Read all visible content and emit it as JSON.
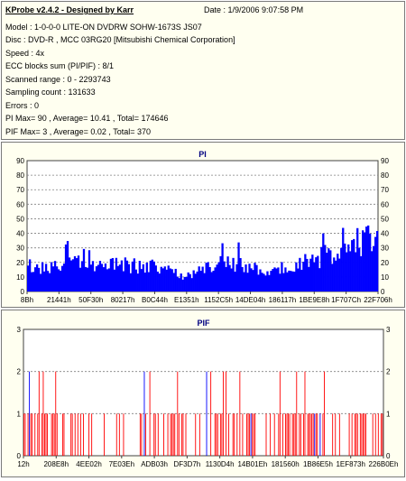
{
  "info": {
    "title": "KProbe v2.4.2 - Designed by Karr",
    "date": "Date : 1/9/2006 9:07:58 PM",
    "lines": [
      "Model : 1-0-0-0 LITE-ON DVDRW SOHW-1673S JS07",
      "Disc : DVD-R , MCC 03RG20  [Mitsubishi Chemical Corporation]",
      "Speed : 4x",
      "ECC blocks sum (PI/PIF) : 8/1",
      "Scanned range : 0 - 2293743",
      "Sampling count : 131633",
      "Errors : 0",
      "PI Max= 90 , Average= 10.41 , Total= 174646",
      "PIF Max= 3 , Average= 0.02 , Total= 370"
    ]
  },
  "colors": {
    "background": "#fffff0",
    "plot_background": "#ffffff",
    "pi_bars": "#0000ff",
    "pif_bars": "#ff0000",
    "grid": "#808080",
    "title_text": "#000080"
  },
  "chart_data": [
    {
      "type": "bar",
      "title": "PI",
      "ylim": [
        0,
        90
      ],
      "yticks": [
        0,
        10,
        20,
        30,
        40,
        50,
        60,
        70,
        80,
        90
      ],
      "xtick_labels": [
        "8Bh",
        "21441h",
        "50F30h",
        "80217h",
        "B0C44h",
        "E1351h",
        "1152C5h",
        "14DE04h",
        "186117h",
        "1BE9E8h",
        "1F707Ch",
        "22F706h"
      ],
      "grid": true,
      "profile": {
        "x": [
          0,
          0.03,
          0.08,
          0.1,
          0.105,
          0.12,
          0.18,
          0.28,
          0.36,
          0.4,
          0.45,
          0.5,
          0.55,
          0.6,
          0.65,
          0.7,
          0.75,
          0.8,
          0.85,
          0.9,
          0.95,
          1.0
        ],
        "y": [
          17,
          16,
          17,
          17,
          30,
          27,
          19,
          18,
          17,
          14,
          10,
          16,
          21,
          19,
          16,
          14,
          17,
          21,
          23,
          28,
          33,
          40
        ]
      }
    },
    {
      "type": "bar",
      "title": "PIF",
      "ylim": [
        0,
        3
      ],
      "yticks": [
        0,
        1,
        2,
        3
      ],
      "xtick_labels": [
        "12h",
        "208E8h",
        "4EE02h",
        "7E03Eh",
        "ADB03h",
        "DF3D7h",
        "1130D4h",
        "14B01Eh",
        "181560h",
        "1B86E5h",
        "1EF873h",
        "226B0Eh"
      ],
      "grid": true,
      "max": 3,
      "total": 370
    }
  ]
}
